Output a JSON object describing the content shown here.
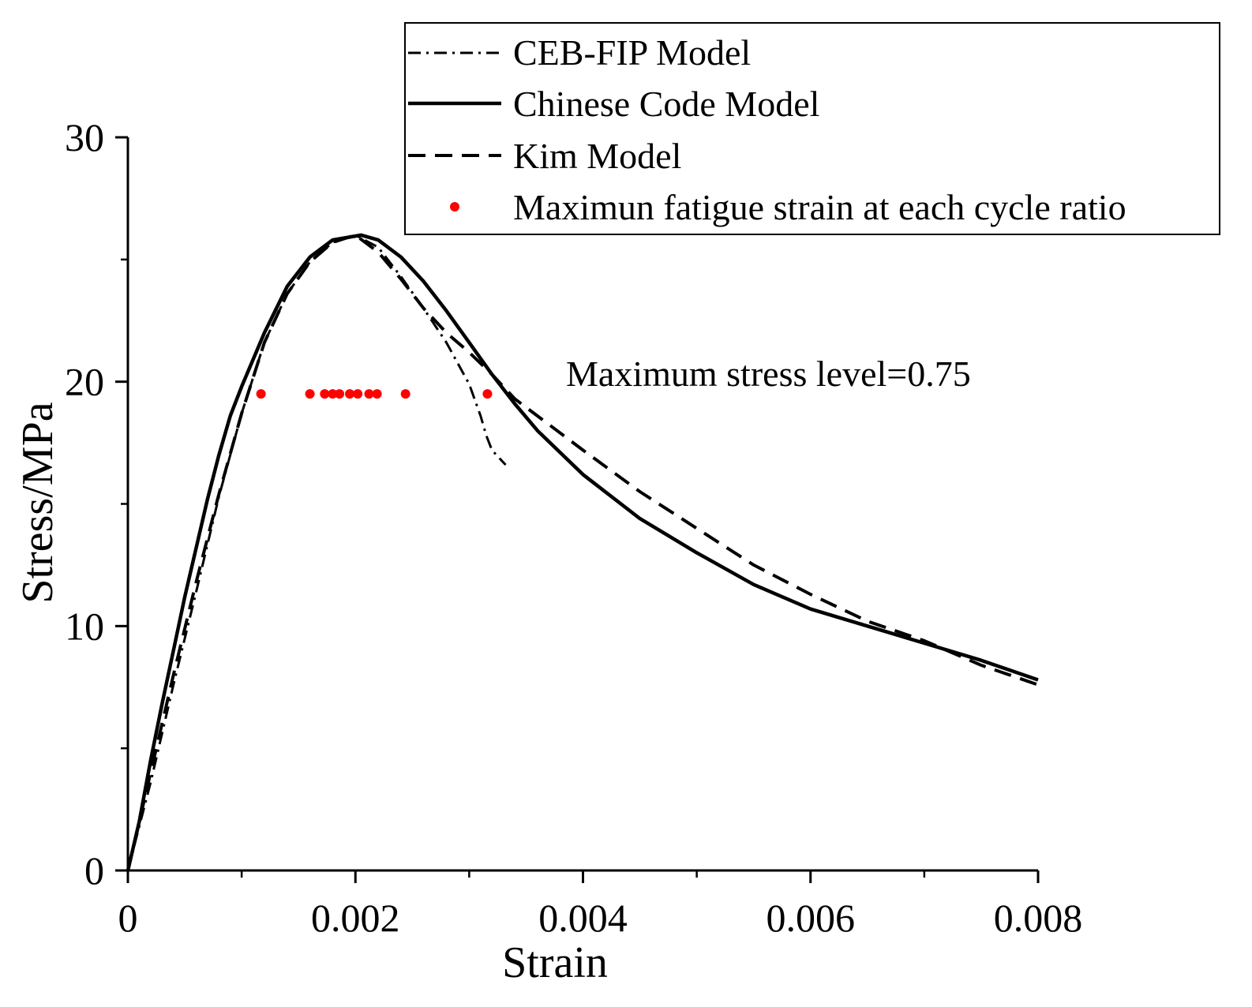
{
  "chart_data": {
    "type": "line",
    "title": "",
    "xlabel": "Strain",
    "ylabel": "Stress/MPa",
    "xlim": [
      0,
      0.008
    ],
    "ylim": [
      0,
      30
    ],
    "x_ticks": [
      0,
      0.002,
      0.004,
      0.006,
      0.008
    ],
    "x_tick_labels": [
      "0",
      "0.002",
      "0.004",
      "0.006",
      "0.008"
    ],
    "y_ticks": [
      0,
      10,
      20,
      30
    ],
    "y_tick_labels": [
      "0",
      "10",
      "20",
      "30"
    ],
    "x_minor_step": 0.001,
    "y_minor_step": 5,
    "grid": false,
    "legend_position": "top-right",
    "annotation": "Maximum stress level=0.75",
    "series": [
      {
        "name": "CEB-FIP Model",
        "style": "dashdot",
        "color": "#000000",
        "points": [
          [
            0,
            0
          ],
          [
            0.0002,
            3.6
          ],
          [
            0.0004,
            7.6
          ],
          [
            0.0006,
            11.4
          ],
          [
            0.0008,
            15.3
          ],
          [
            0.001,
            18.7
          ],
          [
            0.0012,
            21.6
          ],
          [
            0.0014,
            23.6
          ],
          [
            0.0016,
            24.9
          ],
          [
            0.0018,
            25.7
          ],
          [
            0.002,
            26.0
          ],
          [
            0.0022,
            25.5
          ],
          [
            0.0024,
            24.3
          ],
          [
            0.0026,
            23.0
          ],
          [
            0.0028,
            21.6
          ],
          [
            0.003,
            19.9
          ],
          [
            0.0031,
            18.6
          ],
          [
            0.00315,
            17.8
          ],
          [
            0.0032,
            17.2
          ],
          [
            0.00332,
            16.6
          ]
        ]
      },
      {
        "name": "Chinese Code Model",
        "style": "solid",
        "color": "#000000",
        "points": [
          [
            0,
            0
          ],
          [
            0.0001,
            2.0
          ],
          [
            0.0002,
            4.5
          ],
          [
            0.0003,
            6.8
          ],
          [
            0.0004,
            9.0
          ],
          [
            0.0005,
            11.2
          ],
          [
            0.0006,
            13.2
          ],
          [
            0.0007,
            15.2
          ],
          [
            0.0008,
            17.0
          ],
          [
            0.0009,
            18.6
          ],
          [
            0.001,
            19.8
          ],
          [
            0.0012,
            22.0
          ],
          [
            0.0014,
            23.9
          ],
          [
            0.0016,
            25.1
          ],
          [
            0.0018,
            25.8
          ],
          [
            0.00205,
            26.0
          ],
          [
            0.0022,
            25.8
          ],
          [
            0.0024,
            25.1
          ],
          [
            0.0026,
            24.1
          ],
          [
            0.0028,
            22.9
          ],
          [
            0.003,
            21.6
          ],
          [
            0.0032,
            20.3
          ],
          [
            0.0034,
            19.1
          ],
          [
            0.0036,
            18.0
          ],
          [
            0.004,
            16.2
          ],
          [
            0.0045,
            14.4
          ],
          [
            0.005,
            13.0
          ],
          [
            0.0055,
            11.7
          ],
          [
            0.006,
            10.7
          ],
          [
            0.0065,
            10.0
          ],
          [
            0.007,
            9.3
          ],
          [
            0.0075,
            8.6
          ],
          [
            0.008,
            7.8
          ]
        ]
      },
      {
        "name": "Kim Model",
        "style": "dashed",
        "color": "#000000",
        "points": [
          [
            0,
            0
          ],
          [
            0.0002,
            4.0
          ],
          [
            0.0004,
            8.0
          ],
          [
            0.0006,
            11.8
          ],
          [
            0.0008,
            15.4
          ],
          [
            0.001,
            18.7
          ],
          [
            0.0012,
            21.6
          ],
          [
            0.0014,
            23.6
          ],
          [
            0.0016,
            24.9
          ],
          [
            0.0018,
            25.7
          ],
          [
            0.002,
            26.0
          ],
          [
            0.0022,
            25.3
          ],
          [
            0.0024,
            24.2
          ],
          [
            0.0026,
            23.0
          ],
          [
            0.0028,
            22.0
          ],
          [
            0.003,
            21.2
          ],
          [
            0.0032,
            20.3
          ],
          [
            0.0034,
            19.3
          ],
          [
            0.0036,
            18.6
          ],
          [
            0.0038,
            17.9
          ],
          [
            0.004,
            17.2
          ],
          [
            0.0045,
            15.5
          ],
          [
            0.005,
            14.0
          ],
          [
            0.0055,
            12.5
          ],
          [
            0.006,
            11.3
          ],
          [
            0.0065,
            10.2
          ],
          [
            0.007,
            9.4
          ],
          [
            0.0075,
            8.4
          ],
          [
            0.008,
            7.6
          ]
        ]
      },
      {
        "name": "Maximun fatigue strain at each cycle ratio",
        "style": "points",
        "color": "#ff0000",
        "points": [
          [
            0.00117,
            19.5
          ],
          [
            0.0016,
            19.5
          ],
          [
            0.00173,
            19.5
          ],
          [
            0.0018,
            19.5
          ],
          [
            0.00186,
            19.5
          ],
          [
            0.00195,
            19.5
          ],
          [
            0.00202,
            19.5
          ],
          [
            0.00212,
            19.5
          ],
          [
            0.00219,
            19.5
          ],
          [
            0.00244,
            19.5
          ],
          [
            0.00316,
            19.5
          ]
        ]
      }
    ]
  }
}
